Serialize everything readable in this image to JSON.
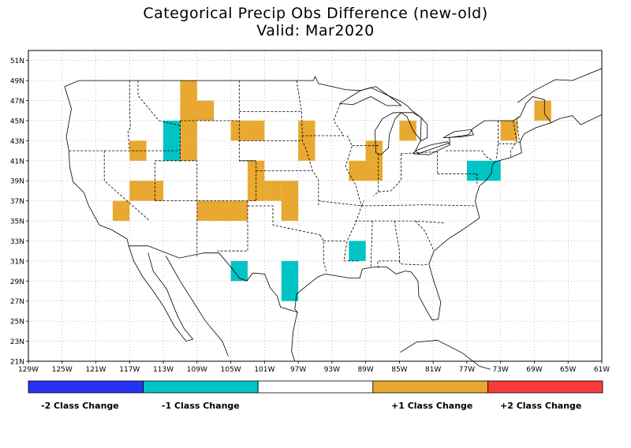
{
  "title": {
    "line1": "Categorical Precip Obs Difference (new-old)",
    "line2": "Valid: Mar2020"
  },
  "map": {
    "lon_range": [
      -129,
      -61
    ],
    "lat_range": [
      21,
      52
    ],
    "lat_ticks": [
      "51N",
      "49N",
      "47N",
      "45N",
      "43N",
      "41N",
      "39N",
      "37N",
      "35N",
      "33N",
      "31N",
      "29N",
      "27N",
      "25N",
      "23N",
      "21N"
    ],
    "lon_ticks": [
      "129W",
      "125W",
      "121W",
      "117W",
      "113W",
      "109W",
      "105W",
      "101W",
      "97W",
      "93W",
      "89W",
      "85W",
      "81W",
      "77W",
      "73W",
      "69W",
      "65W",
      "61W"
    ],
    "grid": "dotted"
  },
  "cells": [
    {
      "lon": [
        -111,
        -109
      ],
      "lat": [
        47,
        49
      ],
      "change": 1
    },
    {
      "lon": [
        -111,
        -107
      ],
      "lat": [
        45,
        47
      ],
      "change": 1
    },
    {
      "lon": [
        -111,
        -109
      ],
      "lat": [
        43,
        45
      ],
      "change": 1
    },
    {
      "lon": [
        -111,
        -109
      ],
      "lat": [
        41,
        43
      ],
      "change": 1
    },
    {
      "lon": [
        -113,
        -111
      ],
      "lat": [
        41,
        45
      ],
      "change": -1
    },
    {
      "lon": [
        -117,
        -115
      ],
      "lat": [
        41,
        43
      ],
      "change": 1
    },
    {
      "lon": [
        -117,
        -113
      ],
      "lat": [
        37,
        39
      ],
      "change": 1
    },
    {
      "lon": [
        -119,
        -117
      ],
      "lat": [
        35,
        37
      ],
      "change": 1
    },
    {
      "lon": [
        -109,
        -103
      ],
      "lat": [
        35,
        37
      ],
      "change": 1
    },
    {
      "lon": [
        -105,
        -101
      ],
      "lat": [
        43,
        45
      ],
      "change": 1
    },
    {
      "lon": [
        -103,
        -101
      ],
      "lat": [
        37,
        41
      ],
      "change": 1
    },
    {
      "lon": [
        -101,
        -99
      ],
      "lat": [
        37,
        39
      ],
      "change": 1
    },
    {
      "lon": [
        -99,
        -97
      ],
      "lat": [
        35,
        39
      ],
      "change": 1
    },
    {
      "lon": [
        -97,
        -95
      ],
      "lat": [
        41,
        45
      ],
      "change": 1
    },
    {
      "lon": [
        -91,
        -87
      ],
      "lat": [
        39,
        41
      ],
      "change": 1
    },
    {
      "lon": [
        -89,
        -87
      ],
      "lat": [
        41,
        43
      ],
      "change": 1
    },
    {
      "lon": [
        -85,
        -83
      ],
      "lat": [
        43,
        45
      ],
      "change": 1
    },
    {
      "lon": [
        -73,
        -71
      ],
      "lat": [
        43,
        45
      ],
      "change": 1
    },
    {
      "lon": [
        -69,
        -67
      ],
      "lat": [
        45,
        47
      ],
      "change": 1
    },
    {
      "lon": [
        -105,
        -103
      ],
      "lat": [
        29,
        31
      ],
      "change": -1
    },
    {
      "lon": [
        -99,
        -97
      ],
      "lat": [
        27,
        31
      ],
      "change": -1
    },
    {
      "lon": [
        -91,
        -89
      ],
      "lat": [
        31,
        33
      ],
      "change": -1
    },
    {
      "lon": [
        -77,
        -73
      ],
      "lat": [
        39,
        41
      ],
      "change": -1
    }
  ],
  "legend": {
    "colors": [
      "#2633f5",
      "#00c4c4",
      "#ffffff",
      "#e8a831",
      "#fa3a3a"
    ],
    "labels": [
      "-2 Class Change",
      "-1 Class Change",
      "+1 Class Change",
      "+2 Class Change"
    ]
  },
  "colors": {
    "minus2": "#2633f5",
    "minus1": "#00c4c4",
    "plus1": "#e8a831",
    "plus2": "#fa3a3a"
  }
}
